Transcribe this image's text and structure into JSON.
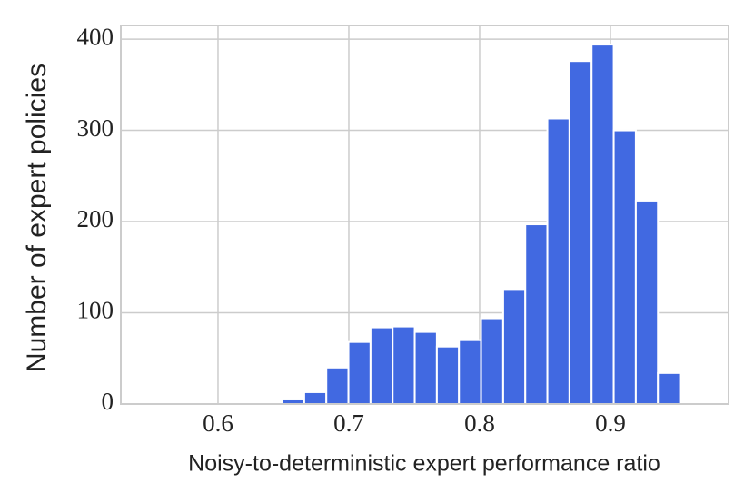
{
  "chart_data": {
    "type": "histogram",
    "x_label": "Noisy-to-deterministic expert performance ratio",
    "y_label": "Number of expert policies",
    "bins": [
      0.649,
      0.6659,
      0.6828,
      0.6997,
      0.7166,
      0.7335,
      0.7504,
      0.7673,
      0.7842,
      0.8011,
      0.818,
      0.8349,
      0.8518,
      0.8687,
      0.8856,
      0.9025,
      0.9194,
      0.9363,
      0.9532
    ],
    "values": [
      5,
      13,
      40,
      68,
      84,
      85,
      79,
      63,
      70,
      94,
      126,
      197,
      313,
      376,
      394,
      300,
      223,
      34
    ],
    "color": "#4169e1",
    "xlim": [
      0.5257,
      0.9903
    ],
    "ylim": [
      0,
      415
    ],
    "xticks": [
      0.6,
      0.7,
      0.8,
      0.9
    ],
    "yticks": [
      0,
      100,
      200,
      300,
      400
    ],
    "grid": true
  }
}
